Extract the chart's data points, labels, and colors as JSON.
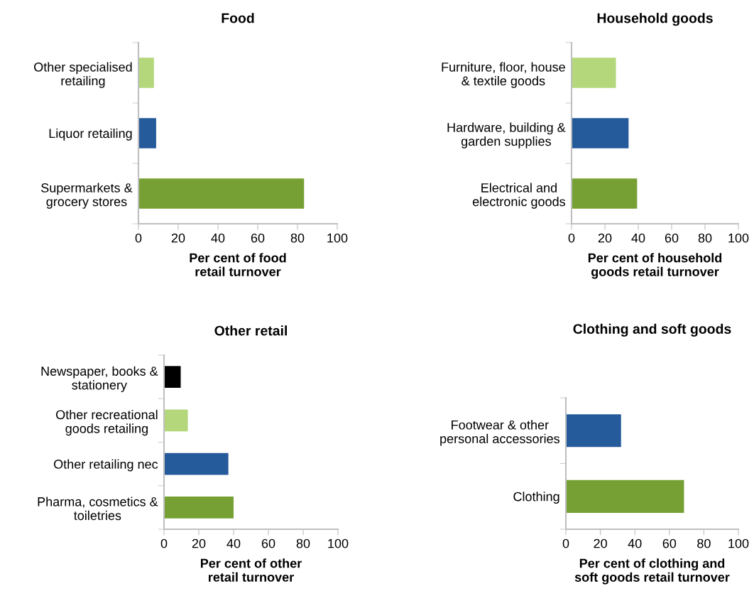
{
  "chart_data": [
    {
      "type": "bar",
      "orientation": "horizontal",
      "title": "Food",
      "xlabel": "Per cent of food\nretail turnover",
      "categories": [
        "Other specialised\nretailing",
        "Liquor retailing",
        "Supermarkets &\ngrocery stores"
      ],
      "values": [
        7.8,
        8.9,
        83.3
      ],
      "colors": [
        "#b3d77a",
        "#255a9b",
        "#76a033"
      ],
      "xlim": [
        0,
        100
      ],
      "xticks": [
        0,
        20,
        40,
        60,
        80,
        100
      ],
      "grid": false,
      "legend": false
    },
    {
      "type": "bar",
      "orientation": "horizontal",
      "title": "Household goods",
      "xlabel": "Per cent of household\ngoods retail turnover",
      "categories": [
        "Furniture, floor, house\n& textile goods",
        "Hardware, building &\ngarden supplies",
        "Electrical and\nelectronic goods"
      ],
      "values": [
        26.6,
        34.2,
        39.3
      ],
      "colors": [
        "#b3d77a",
        "#255a9b",
        "#76a033"
      ],
      "xlim": [
        0,
        100
      ],
      "xticks": [
        0,
        20,
        40,
        60,
        80,
        100
      ],
      "grid": false,
      "legend": false
    },
    {
      "type": "bar",
      "orientation": "horizontal",
      "title": "Other retail",
      "xlabel": "Per cent of other\nretail turnover",
      "categories": [
        "Newspaper, books &\nstationery",
        "Other recreational\ngoods retailing",
        "Other retailing nec",
        "Pharma, cosmetics &\ntoiletries"
      ],
      "values": [
        9.6,
        13.7,
        37,
        40
      ],
      "colors": [
        "#000000",
        "#b3d77a",
        "#255a9b",
        "#76a033"
      ],
      "xlim": [
        0,
        100
      ],
      "xticks": [
        0,
        20,
        40,
        60,
        80,
        100
      ],
      "grid": false,
      "legend": false
    },
    {
      "type": "bar",
      "orientation": "horizontal",
      "title": "Clothing and soft goods",
      "xlabel": "Per cent of clothing and\nsoft goods retail turnover",
      "categories": [
        "Footwear & other\npersonal accessories",
        "Clothing"
      ],
      "values": [
        32,
        68.5
      ],
      "colors": [
        "#255a9b",
        "#76a033"
      ],
      "xlim": [
        0,
        100
      ],
      "xticks": [
        0,
        20,
        40,
        60,
        80,
        100
      ],
      "grid": false,
      "legend": false
    }
  ]
}
